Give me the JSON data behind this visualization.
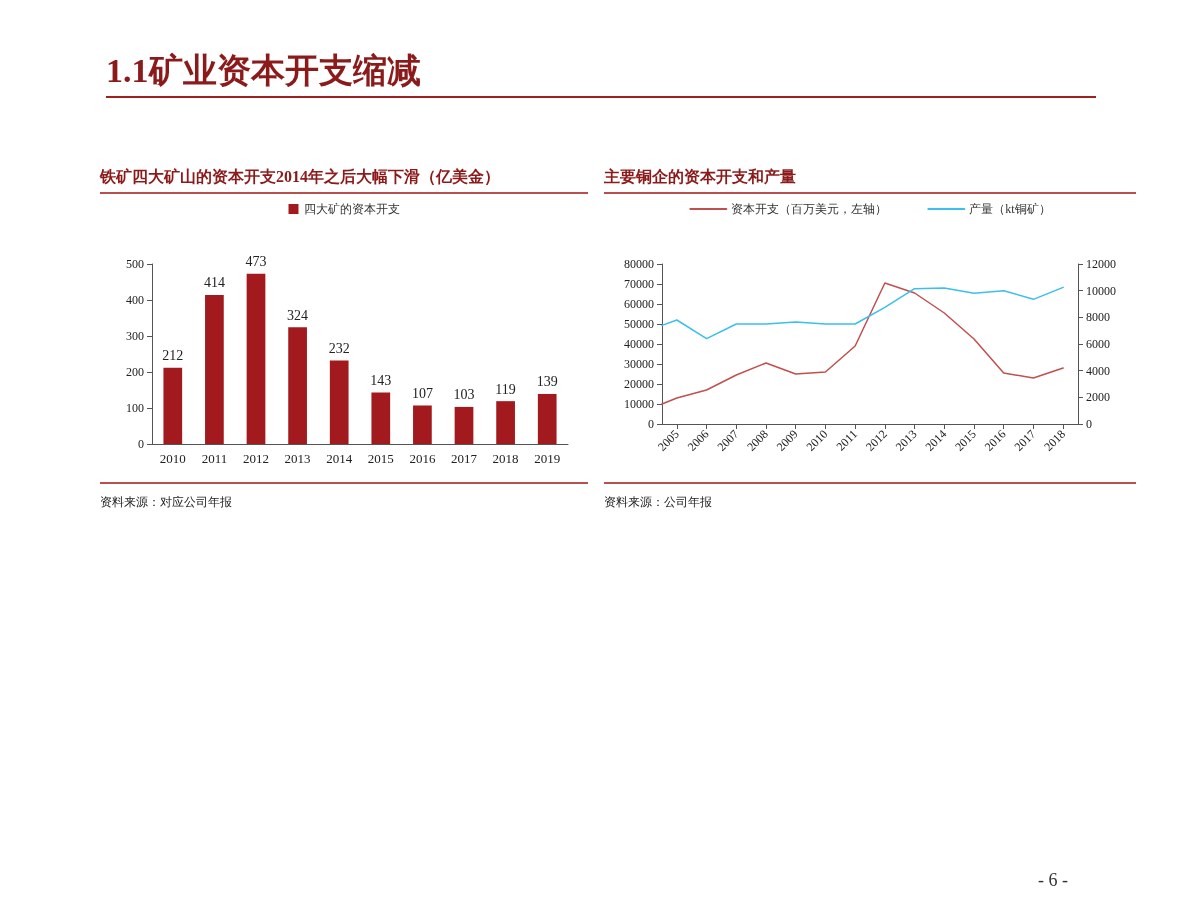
{
  "chart_data": [
    {
      "type": "bar",
      "title": "铁矿四大矿山的资本开支2014年之后大幅下滑（亿美金）",
      "categories": [
        "2010",
        "2011",
        "2012",
        "2013",
        "2014",
        "2015",
        "2016",
        "2017",
        "2018",
        "2019"
      ],
      "series": [
        {
          "name": "四大矿的资本开支",
          "color": "#a31a1e",
          "values": [
            212,
            414,
            473,
            324,
            232,
            143,
            107,
            103,
            119,
            139
          ]
        }
      ],
      "ylim": [
        0,
        500
      ],
      "yticks": [
        0,
        100,
        200,
        300,
        400,
        500
      ],
      "grid": false,
      "legend": "top",
      "data_labels": true,
      "annotations": [
        "1.1矿业资本开支缩减",
        "资料来源：对应公司年报"
      ]
    },
    {
      "type": "line",
      "title": "主要铜企的资本开支和产量",
      "x": [
        2004.5,
        2005,
        2006,
        2007,
        2008,
        2009,
        2010,
        2011,
        2012,
        2013,
        2014,
        2015,
        2016,
        2017,
        2018
      ],
      "series": [
        {
          "name": "资本开支（百万美元，左轴）",
          "color": "#c0504d",
          "values": [
            10000,
            13000,
            17000,
            24500,
            30500,
            25000,
            26000,
            39000,
            70500,
            65500,
            55500,
            42500,
            25500,
            23000,
            28000
          ]
        },
        {
          "name": "产量（kt铜矿）",
          "color": "#3cbfec",
          "axis": "y2",
          "values": [
            7400,
            7800,
            6400,
            7500,
            7500,
            7650,
            7500,
            7500,
            8750,
            10150,
            10200,
            9800,
            10000,
            9350,
            10250
          ]
        }
      ],
      "xlim": [
        2004.5,
        2018.5
      ],
      "xticks": [
        2005,
        2006,
        2007,
        2008,
        2009,
        2010,
        2011,
        2012,
        2013,
        2014,
        2015,
        2016,
        2017,
        2018
      ],
      "ylim": [
        0,
        80000
      ],
      "yticks": [
        0,
        10000,
        20000,
        30000,
        40000,
        50000,
        60000,
        70000,
        80000
      ],
      "y2lim": [
        0,
        12000
      ],
      "y2ticks": [
        0,
        2000,
        4000,
        6000,
        8000,
        10000,
        12000
      ],
      "grid": false,
      "legend": "top",
      "marker": "none",
      "line_style": "solid",
      "annotations": [
        "资料来源：公司年报",
        "- 6 -"
      ]
    }
  ]
}
